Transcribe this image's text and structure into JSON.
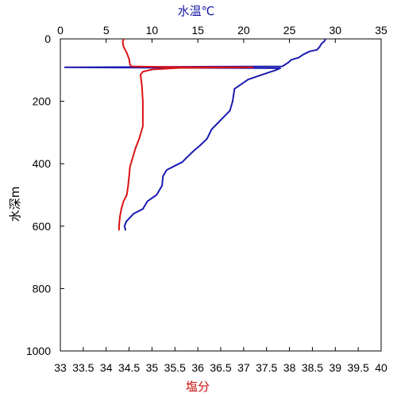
{
  "chart_data": {
    "type": "line",
    "title": "",
    "y_axis": {
      "label": "水深m",
      "ylim": [
        1000,
        0
      ],
      "ticks": [
        0,
        200,
        400,
        600,
        800,
        1000
      ],
      "tick_labels": [
        "0",
        "200",
        "400",
        "600",
        "800",
        "1000"
      ]
    },
    "top_x_axis": {
      "label": "水温℃",
      "color": "#1a1aa6",
      "xlim": [
        0,
        35
      ],
      "ticks": [
        0,
        5,
        10,
        15,
        20,
        25,
        30,
        35
      ],
      "tick_labels": [
        "0",
        "5",
        "10",
        "15",
        "20",
        "25",
        "30",
        "35"
      ]
    },
    "bottom_x_axis": {
      "label": "塩分",
      "color": "#cc1111",
      "xlim": [
        33,
        40
      ],
      "ticks": [
        33,
        33.5,
        34,
        34.5,
        35,
        35.5,
        36,
        36.5,
        37,
        37.5,
        38,
        38.5,
        39,
        39.5,
        40
      ],
      "tick_labels": [
        "33",
        "33.5",
        "34",
        "34.5",
        "35",
        "35.5",
        "36",
        "36.5",
        "37",
        "37.5",
        "38",
        "38.5",
        "39",
        "39.5",
        "40"
      ]
    },
    "grid": false,
    "series": [
      {
        "axis": "top",
        "color": "#1a1ab0",
        "points": [
          {
            "value": 28.9,
            "depth": 2
          },
          {
            "value": 28.8,
            "depth": 8
          },
          {
            "value": 28.5,
            "depth": 15
          },
          {
            "value": 28.3,
            "depth": 25
          },
          {
            "value": 28.0,
            "depth": 35
          },
          {
            "value": 27.2,
            "depth": 40
          },
          {
            "value": 26.5,
            "depth": 50
          },
          {
            "value": 26.0,
            "depth": 60
          },
          {
            "value": 25.2,
            "depth": 67
          },
          {
            "value": 24.9,
            "depth": 75
          },
          {
            "value": 24.5,
            "depth": 83
          },
          {
            "value": 24.2,
            "depth": 88
          },
          {
            "value": 0.5,
            "depth": 91
          },
          {
            "value": 24.0,
            "depth": 94
          },
          {
            "value": 23.5,
            "depth": 100
          },
          {
            "value": 22.5,
            "depth": 110
          },
          {
            "value": 20.5,
            "depth": 130
          },
          {
            "value": 19.0,
            "depth": 160
          },
          {
            "value": 18.8,
            "depth": 200
          },
          {
            "value": 18.5,
            "depth": 230
          },
          {
            "value": 17.5,
            "depth": 260
          },
          {
            "value": 16.5,
            "depth": 290
          },
          {
            "value": 16.0,
            "depth": 320
          },
          {
            "value": 15.3,
            "depth": 340
          },
          {
            "value": 14.5,
            "depth": 360
          },
          {
            "value": 13.8,
            "depth": 380
          },
          {
            "value": 13.3,
            "depth": 395
          },
          {
            "value": 12.6,
            "depth": 405
          },
          {
            "value": 11.6,
            "depth": 420
          },
          {
            "value": 11.2,
            "depth": 440
          },
          {
            "value": 11.1,
            "depth": 470
          },
          {
            "value": 10.5,
            "depth": 500
          },
          {
            "value": 9.5,
            "depth": 520
          },
          {
            "value": 9.0,
            "depth": 545
          },
          {
            "value": 8.0,
            "depth": 560
          },
          {
            "value": 7.2,
            "depth": 585
          },
          {
            "value": 7.0,
            "depth": 600
          },
          {
            "value": 7.1,
            "depth": 612
          }
        ]
      },
      {
        "axis": "bottom",
        "color": "#dd1111",
        "points": [
          {
            "value": 34.38,
            "depth": 2
          },
          {
            "value": 34.36,
            "depth": 10
          },
          {
            "value": 34.38,
            "depth": 25
          },
          {
            "value": 34.45,
            "depth": 45
          },
          {
            "value": 34.5,
            "depth": 65
          },
          {
            "value": 34.52,
            "depth": 82
          },
          {
            "value": 34.55,
            "depth": 88
          },
          {
            "value": 35.3,
            "depth": 90
          },
          {
            "value": 36.5,
            "depth": 91
          },
          {
            "value": 37.2,
            "depth": 91
          },
          {
            "value": 35.6,
            "depth": 93
          },
          {
            "value": 35.0,
            "depth": 98
          },
          {
            "value": 34.8,
            "depth": 105
          },
          {
            "value": 34.75,
            "depth": 115
          },
          {
            "value": 34.78,
            "depth": 150
          },
          {
            "value": 34.8,
            "depth": 200
          },
          {
            "value": 34.8,
            "depth": 280
          },
          {
            "value": 34.72,
            "depth": 320
          },
          {
            "value": 34.64,
            "depth": 350
          },
          {
            "value": 34.58,
            "depth": 380
          },
          {
            "value": 34.52,
            "depth": 410
          },
          {
            "value": 34.5,
            "depth": 440
          },
          {
            "value": 34.48,
            "depth": 470
          },
          {
            "value": 34.45,
            "depth": 500
          },
          {
            "value": 34.38,
            "depth": 520
          },
          {
            "value": 34.33,
            "depth": 545
          },
          {
            "value": 34.3,
            "depth": 570
          },
          {
            "value": 34.28,
            "depth": 600
          },
          {
            "value": 34.28,
            "depth": 612
          }
        ]
      }
    ]
  }
}
